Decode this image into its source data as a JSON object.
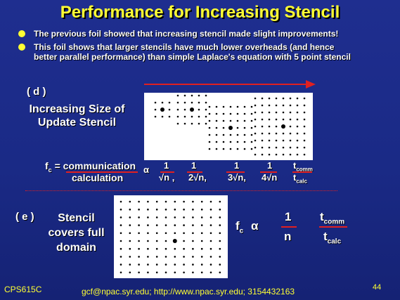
{
  "title": "Performance for Increasing Stencil",
  "bullets": [
    "The previous foil showed that increasing stencil made slight improvements!",
    "This foil shows that larger stencils have much lower overheads (and hence",
    "better parallel performance) than simple Laplace's equation with 5 point stencil"
  ],
  "section_d": {
    "label": "( d )",
    "caption_line1": "Increasing Size of",
    "caption_line2": "Update Stencil"
  },
  "formula_d": {
    "fc": "f",
    "fc_sub": "c",
    "equals": "=",
    "numerator": "communication",
    "denominator": "calculation",
    "alpha": "α",
    "fractions": [
      {
        "num": "1",
        "den": "√n ,"
      },
      {
        "num": "1",
        "den": "2√n,"
      },
      {
        "num": "1",
        "den": "3√n,"
      },
      {
        "num": "1",
        "den": "4√n"
      }
    ],
    "t_comm": "t",
    "t_comm_sub": "comm",
    "t_calc": "t",
    "t_calc_sub": "calc"
  },
  "section_e": {
    "label": "( e )",
    "caption_line1": "Stencil",
    "caption_line2": "covers full",
    "caption_line3": "domain"
  },
  "formula_e": {
    "fc": "f",
    "fc_sub": "c",
    "alpha": "α",
    "num": "1",
    "den": "n",
    "t_comm": "t",
    "t_comm_sub": "comm",
    "t_calc": "t",
    "t_calc_sub": "calc"
  },
  "footer": {
    "course": "CPS615C",
    "contact": "gcf@npac.syr.edu; http://www.npac.syr.edu; 3154432163",
    "page": "44"
  },
  "colors": {
    "background": "#1f2e8f",
    "title": "#ffff33",
    "accent_red": "#e02020",
    "bullet": "#ffff33"
  }
}
